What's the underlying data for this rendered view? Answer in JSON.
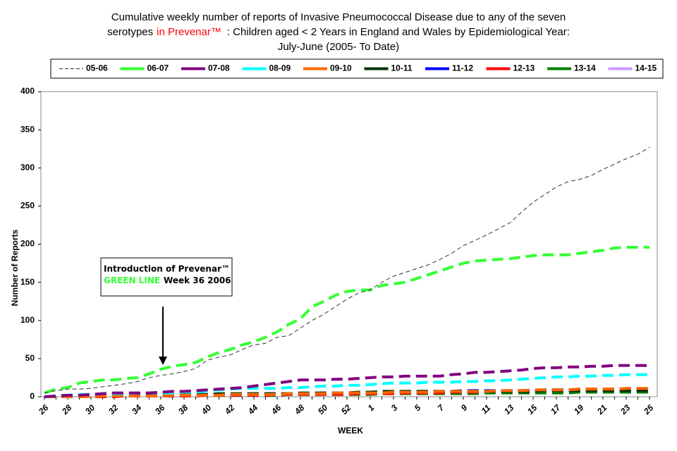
{
  "chart_data": {
    "type": "line",
    "title": {
      "line1": "Cumulative weekly number of reports of Invasive Pneumococcal Disease due to any of the seven",
      "line2": [
        "serotypes",
        "in Prevenar™",
        ":  Children aged < 2 Years in England and Wales by Epidemiological Year:"
      ],
      "line3": "July-June (2005- To Date)"
    },
    "annotation": {
      "line1": "Introduction of Prevenar™",
      "line2": [
        "GREEN  LINE",
        "Week 36 2006"
      ]
    },
    "x_label": "WEEK",
    "y_label": "Number of Reports",
    "categories": [
      "26",
      null,
      "28",
      null,
      "30",
      null,
      "32",
      null,
      "34",
      null,
      "36",
      null,
      "38",
      null,
      "40",
      null,
      "42",
      null,
      "44",
      null,
      "46",
      null,
      "48",
      null,
      "50",
      null,
      "52",
      null,
      "1",
      null,
      "3",
      null,
      "5",
      null,
      "7",
      null,
      "9",
      null,
      "11",
      null,
      "13",
      null,
      "15",
      null,
      "17",
      null,
      "19",
      null,
      "21",
      null,
      "23",
      null,
      "25"
    ],
    "ylim": [
      0,
      400
    ],
    "yticks": [
      0,
      50,
      100,
      150,
      200,
      250,
      300,
      350,
      400
    ],
    "series": [
      {
        "name": "05-06",
        "color": "#333333",
        "values": [
          5,
          8,
          10,
          10,
          11,
          13,
          15,
          17,
          20,
          25,
          28,
          30,
          33,
          37,
          48,
          52,
          55,
          62,
          68,
          70,
          78,
          80,
          90,
          100,
          108,
          118,
          128,
          136,
          140,
          150,
          158,
          163,
          168,
          173,
          180,
          188,
          198,
          205,
          212,
          220,
          228,
          242,
          255,
          265,
          275,
          282,
          285,
          290,
          298,
          305,
          312,
          318,
          327
        ]
      },
      {
        "name": "06-07",
        "color": "#33ff33",
        "values": [
          5,
          10,
          12,
          18,
          20,
          22,
          22,
          24,
          25,
          30,
          36,
          40,
          42,
          45,
          52,
          58,
          62,
          68,
          72,
          78,
          85,
          95,
          102,
          118,
          125,
          133,
          138,
          140,
          140,
          146,
          148,
          150,
          155,
          160,
          165,
          170,
          175,
          178,
          179,
          180,
          181,
          183,
          185,
          186,
          186,
          186,
          188,
          190,
          192,
          195,
          196,
          196,
          196
        ]
      },
      {
        "name": "07-08",
        "color": "#800080",
        "values": [
          0,
          1,
          2,
          2,
          3,
          4,
          5,
          5,
          5,
          5,
          6,
          7,
          7,
          8,
          9,
          10,
          11,
          12,
          14,
          16,
          18,
          20,
          22,
          22,
          22,
          23,
          23,
          24,
          25,
          26,
          26,
          27,
          27,
          27,
          27,
          29,
          30,
          32,
          32,
          33,
          34,
          35,
          37,
          38,
          38,
          39,
          39,
          40,
          40,
          41,
          41,
          41,
          41
        ]
      },
      {
        "name": "08-09",
        "color": "#00ffff",
        "values": [
          0,
          1,
          2,
          3,
          3,
          4,
          4,
          4,
          5,
          5,
          5,
          5,
          6,
          6,
          8,
          9,
          10,
          11,
          11,
          11,
          11,
          12,
          12,
          13,
          14,
          14,
          15,
          15,
          16,
          17,
          18,
          18,
          18,
          19,
          19,
          19,
          20,
          20,
          21,
          21,
          22,
          23,
          24,
          25,
          26,
          26,
          27,
          27,
          28,
          28,
          29,
          29,
          29
        ]
      },
      {
        "name": "09-10",
        "color": "#ff6600",
        "values": [
          0,
          0,
          0,
          0,
          0,
          1,
          1,
          1,
          1,
          1,
          1,
          2,
          2,
          2,
          2,
          2,
          3,
          3,
          3,
          3,
          3,
          4,
          4,
          4,
          4,
          5,
          5,
          5,
          5,
          5,
          6,
          6,
          6,
          6,
          7,
          7,
          7,
          7,
          7,
          8,
          8,
          8,
          9,
          9,
          9,
          9,
          10,
          10,
          10,
          10,
          11,
          11,
          11
        ]
      },
      {
        "name": "10-11",
        "color": "#003300",
        "values": [
          0,
          0,
          1,
          1,
          1,
          2,
          2,
          2,
          2,
          3,
          3,
          3,
          3,
          3,
          3,
          4,
          4,
          4,
          4,
          4,
          4,
          4,
          5,
          5,
          5,
          5,
          5,
          6,
          6,
          7,
          7,
          7,
          7,
          7,
          7,
          7,
          7,
          7,
          7,
          7,
          7,
          7,
          7,
          8,
          8,
          8,
          8,
          8,
          8,
          8,
          8,
          8,
          8
        ]
      },
      {
        "name": "11-12",
        "color": "#0000ff",
        "values": [
          0,
          0,
          0,
          1,
          1,
          1,
          1,
          2,
          2,
          2,
          2,
          2,
          3,
          3,
          3,
          3,
          3,
          3,
          4,
          4,
          4,
          4,
          4,
          4,
          5,
          5,
          5,
          5,
          6,
          6,
          6,
          7,
          7,
          7,
          7,
          7,
          8,
          8,
          8,
          8,
          8,
          8,
          8,
          9,
          9,
          9,
          9,
          9,
          9,
          10,
          10,
          10,
          10
        ]
      },
      {
        "name": "12-13",
        "color": "#ff0000",
        "values": [
          0,
          0,
          0,
          0,
          0,
          0,
          0,
          1,
          1,
          1,
          1,
          1,
          1,
          1,
          2,
          2,
          2,
          2,
          2,
          2,
          3,
          3,
          3,
          3,
          3,
          3,
          3,
          4,
          4,
          4,
          4,
          5,
          5,
          5,
          5,
          6,
          6,
          6,
          7,
          7,
          8,
          8,
          8,
          9,
          9,
          9,
          10,
          10,
          10,
          10,
          10,
          10,
          10
        ]
      },
      {
        "name": "13-14",
        "color": "#008000",
        "values": [
          0,
          0,
          0,
          0,
          0,
          0,
          1,
          1,
          1,
          1,
          1,
          1,
          1,
          2,
          2,
          2,
          2,
          2,
          2,
          2,
          2,
          3,
          3,
          3,
          3,
          3,
          3,
          3,
          3,
          4,
          4,
          4,
          4,
          4,
          4,
          4,
          4,
          4,
          5,
          5,
          5,
          5,
          5,
          5,
          5,
          5,
          6,
          6,
          6,
          6,
          6,
          6,
          6
        ]
      },
      {
        "name": "14-15",
        "color": "#cc99ff",
        "values": [
          0,
          1,
          1,
          2,
          2,
          2,
          3,
          3,
          3,
          4,
          4,
          null,
          null,
          null,
          null,
          null,
          null,
          null,
          null,
          null,
          null,
          null,
          null,
          null,
          null,
          null,
          null,
          null,
          null,
          null,
          null,
          null,
          null,
          null,
          null,
          null,
          null,
          null,
          null,
          null,
          null,
          null,
          null,
          null,
          null,
          null,
          null,
          null,
          null,
          null,
          null,
          null,
          null
        ]
      }
    ]
  }
}
